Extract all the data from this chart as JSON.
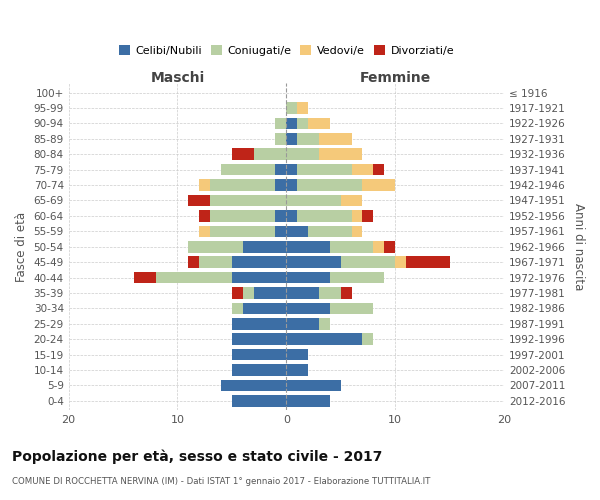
{
  "age_groups": [
    "0-4",
    "5-9",
    "10-14",
    "15-19",
    "20-24",
    "25-29",
    "30-34",
    "35-39",
    "40-44",
    "45-49",
    "50-54",
    "55-59",
    "60-64",
    "65-69",
    "70-74",
    "75-79",
    "80-84",
    "85-89",
    "90-94",
    "95-99",
    "100+"
  ],
  "birth_years": [
    "2012-2016",
    "2007-2011",
    "2002-2006",
    "1997-2001",
    "1992-1996",
    "1987-1991",
    "1982-1986",
    "1977-1981",
    "1972-1976",
    "1967-1971",
    "1962-1966",
    "1957-1961",
    "1952-1956",
    "1947-1951",
    "1942-1946",
    "1937-1941",
    "1932-1936",
    "1927-1931",
    "1922-1926",
    "1917-1921",
    "≤ 1916"
  ],
  "colors": {
    "celibi": "#3c6ea5",
    "coniugati": "#b8cfa3",
    "vedovi": "#f5c97a",
    "divorziati": "#bf2418"
  },
  "maschi": {
    "celibi": [
      5,
      6,
      5,
      5,
      5,
      5,
      4,
      3,
      5,
      5,
      4,
      1,
      1,
      0,
      1,
      1,
      0,
      0,
      0,
      0,
      0
    ],
    "coniugati": [
      0,
      0,
      0,
      0,
      0,
      0,
      1,
      1,
      7,
      3,
      5,
      6,
      6,
      7,
      6,
      5,
      3,
      1,
      1,
      0,
      0
    ],
    "vedovi": [
      0,
      0,
      0,
      0,
      0,
      0,
      0,
      0,
      0,
      0,
      0,
      1,
      0,
      0,
      1,
      0,
      0,
      0,
      0,
      0,
      0
    ],
    "divorziati": [
      0,
      0,
      0,
      0,
      0,
      0,
      0,
      1,
      2,
      1,
      0,
      0,
      1,
      2,
      0,
      0,
      2,
      0,
      0,
      0,
      0
    ]
  },
  "femmine": {
    "celibi": [
      4,
      5,
      2,
      2,
      7,
      3,
      4,
      3,
      4,
      5,
      4,
      2,
      1,
      0,
      1,
      1,
      0,
      1,
      1,
      0,
      0
    ],
    "coniugati": [
      0,
      0,
      0,
      0,
      1,
      1,
      4,
      2,
      5,
      5,
      4,
      4,
      5,
      5,
      6,
      5,
      3,
      2,
      1,
      1,
      0
    ],
    "vedovi": [
      0,
      0,
      0,
      0,
      0,
      0,
      0,
      0,
      0,
      1,
      1,
      1,
      1,
      2,
      3,
      2,
      4,
      3,
      2,
      1,
      0
    ],
    "divorziati": [
      0,
      0,
      0,
      0,
      0,
      0,
      0,
      1,
      0,
      4,
      1,
      0,
      1,
      0,
      0,
      1,
      0,
      0,
      0,
      0,
      0
    ]
  },
  "title": "Popolazione per età, sesso e stato civile - 2017",
  "subtitle": "COMUNE DI ROCCHETTA NERVINA (IM) - Dati ISTAT 1° gennaio 2017 - Elaborazione TUTTITALIA.IT",
  "xlabel_left": "Maschi",
  "xlabel_right": "Femmine",
  "ylabel_left": "Fasce di età",
  "ylabel_right": "Anni di nascita",
  "xlim": [
    -20,
    20
  ],
  "xticks": [
    -20,
    -10,
    0,
    10,
    20
  ],
  "xtick_labels": [
    "20",
    "10",
    "0",
    "10",
    "20"
  ],
  "legend_labels": [
    "Celibi/Nubili",
    "Coniugati/e",
    "Vedovi/e",
    "Divorziati/e"
  ],
  "background_color": "#ffffff",
  "grid_color": "#cccccc",
  "bar_height": 0.75
}
